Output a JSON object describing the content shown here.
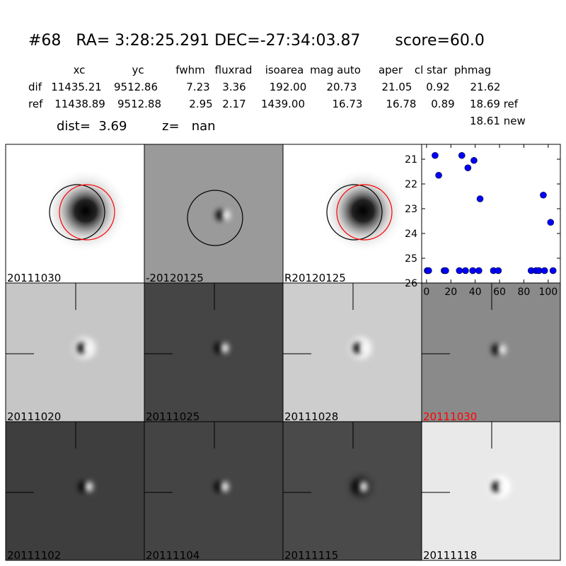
{
  "header": {
    "title": "#68   RA= 3:28:25.291 DEC=-27:34:03.87       score=60.0"
  },
  "table": {
    "columns": [
      "xc",
      "yc",
      "fwhm",
      "fluxrad",
      "isoarea",
      "mag auto",
      "aper",
      "cl star",
      "phmag"
    ],
    "rows": [
      {
        "label": "dif",
        "cells": [
          "11435.21",
          "9512.86",
          "7.23",
          "3.36",
          "192.00",
          "20.73",
          "21.05",
          "0.92",
          "21.62"
        ]
      },
      {
        "label": "ref",
        "cells": [
          "11438.89",
          "9512.88",
          "2.95",
          "2.17",
          "1439.00",
          "16.73",
          "16.78",
          "0.89",
          "18.69 ref"
        ]
      }
    ]
  },
  "dist": "dist=  3.69",
  "z": "z=   nan",
  "new_mag": "18.61 new",
  "panels": [
    {
      "label": "20111030"
    },
    {
      "label": "-20120125"
    },
    {
      "label": "R20120125"
    },
    {
      "label": "20111020"
    },
    {
      "label": "20111025"
    },
    {
      "label": "20111028"
    },
    {
      "label": "20111030",
      "color": "#ff0000"
    },
    {
      "label": "20111102"
    },
    {
      "label": "20111104"
    },
    {
      "label": "20111115"
    },
    {
      "label": "20111118"
    }
  ],
  "chart_data": {
    "type": "scatter",
    "x": [
      7,
      10,
      29,
      34,
      39,
      44,
      96,
      102,
      0.6,
      1.7,
      14.5,
      15.7,
      27,
      32,
      38,
      43,
      55,
      59,
      86,
      90,
      92.4,
      97,
      104
    ],
    "y": [
      20.85,
      21.65,
      20.85,
      21.35,
      21.05,
      22.6,
      22.45,
      23.55,
      25.5,
      25.5,
      25.5,
      25.5,
      25.5,
      25.5,
      25.5,
      25.5,
      25.5,
      25.5,
      25.5,
      25.5,
      25.5,
      25.5,
      25.5
    ],
    "color": "#0000ff",
    "xlim": [
      -4,
      110
    ],
    "ylim": [
      26,
      20.4
    ],
    "xticks": [
      0,
      20,
      40,
      60,
      80,
      100
    ],
    "yticks": [
      21,
      22,
      23,
      24,
      25,
      26
    ]
  }
}
